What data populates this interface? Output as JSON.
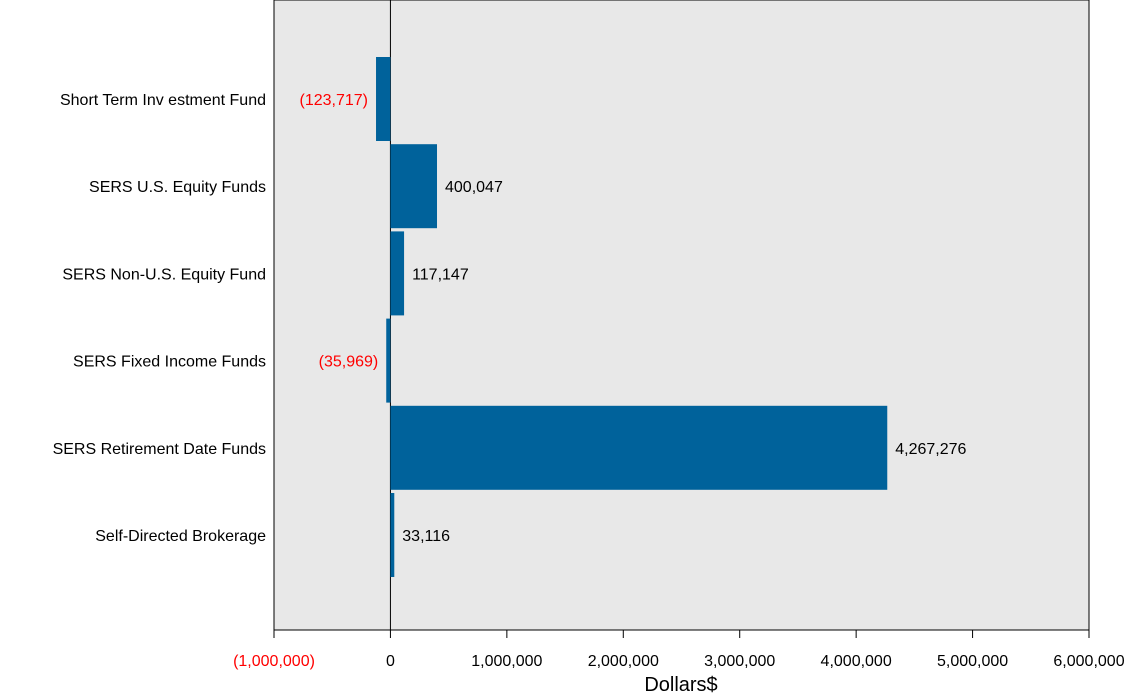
{
  "chart_data": {
    "type": "bar",
    "orientation": "horizontal",
    "categories": [
      "Short Term Inv estment Fund",
      "SERS U.S. Equity Funds",
      "SERS Non-U.S. Equity Fund",
      "SERS Fixed Income Funds",
      "SERS Retirement Date Funds",
      "Self-Directed Brokerage"
    ],
    "values": [
      -123717,
      400047,
      117147,
      -35969,
      4267276,
      33116
    ],
    "value_labels": [
      "(123,717)",
      "400,047",
      "117,147",
      "(35,969)",
      "4,267,276",
      "33,116"
    ],
    "xlabel": "Dollars$",
    "xlim": [
      -1000000,
      6000000
    ],
    "x_ticks": [
      -1000000,
      0,
      1000000,
      2000000,
      3000000,
      4000000,
      5000000,
      6000000
    ],
    "x_tick_labels": [
      "(1,000,000)",
      "0",
      "1,000,000",
      "2,000,000",
      "3,000,000",
      "4,000,000",
      "5,000,000",
      "6,000,000"
    ],
    "grid": false,
    "legend": "none",
    "colors": {
      "bar": "#00629b",
      "plot_background": "#e8e8e8",
      "negative_text": "#ff0000",
      "text": "#000000"
    }
  }
}
